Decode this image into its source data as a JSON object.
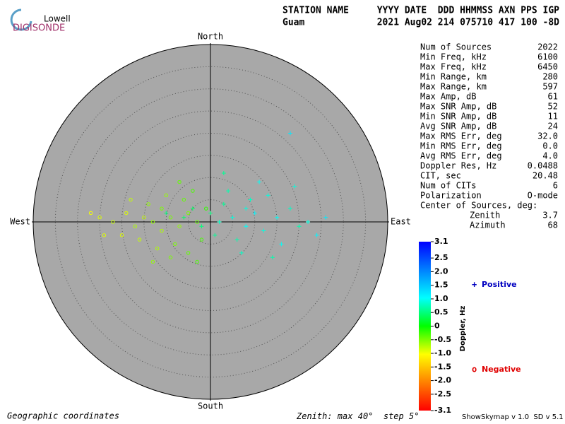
{
  "header": {
    "columns_left": "STATION NAME",
    "columns_right": "YYYY DATE  DDD HHMMSS AXN PPS IGP",
    "station": "Guam",
    "values": "2021 Aug02 214 075710 417 100 -8D"
  },
  "logo": {
    "top": "Lowell",
    "bottom": "DIGISONDE"
  },
  "stats": {
    "rows": [
      [
        "Num of Sources",
        "2022"
      ],
      [
        "Min Freq, kHz",
        "6100"
      ],
      [
        "Max Freq, kHz",
        "6450"
      ],
      [
        "Min Range, km",
        "280"
      ],
      [
        "Max Range, km",
        "597"
      ],
      [
        "Max Amp, dB",
        "61"
      ],
      [
        "Max SNR Amp, dB",
        "52"
      ],
      [
        "Min SNR Amp, dB",
        "11"
      ],
      [
        "Avg SNR Amp, dB",
        "24"
      ],
      [
        "Max RMS Err, deg",
        "32.0"
      ],
      [
        "Min RMS Err, deg",
        "0.0"
      ],
      [
        "Avg RMS Err, deg",
        "4.0"
      ],
      [
        "Doppler Res, Hz",
        "0.0488"
      ],
      [
        "CIT, sec",
        "20.48"
      ],
      [
        "Num of CITs",
        "6"
      ],
      [
        "Polarization",
        "O-mode"
      ]
    ],
    "center_label": "Center of Sources, deg:",
    "center_rows": [
      [
        "Zenith",
        "3.7"
      ],
      [
        "Azimuth",
        "68"
      ]
    ]
  },
  "footer": {
    "coordinates": "Geographic coordinates",
    "zenith_label": "Zenith: max",
    "step_label": "step",
    "version": "ShowSkymap v 1.0  SD v 5.1"
  },
  "chart_data": {
    "type": "skymap",
    "directions": {
      "north": "North",
      "south": "South",
      "east": "East",
      "west": "West"
    },
    "zenith_max": {
      "value": 40,
      "label": "40°"
    },
    "zenith_step": {
      "value": 5,
      "label": "5°"
    },
    "background": "#a8a8a8",
    "colorbar_label": "Doppler, Hz",
    "clim": [
      -3.1,
      3.1
    ],
    "cticks": [
      3.1,
      2.5,
      {
        "value": 2,
        "label": "2.0"
      },
      1.5,
      {
        "value": 1,
        "label": "1.0"
      },
      0.5,
      0,
      -0.5,
      {
        "value": -1,
        "label": "-1.0"
      },
      -1.5,
      {
        "value": -2,
        "label": "-2.0"
      },
      -2.5,
      -3.1
    ],
    "colormap": [
      "#ff0000",
      "#ff8000",
      "#ffff00",
      "#00ff00",
      "#00ffff",
      "#0080ff",
      "#0000ff"
    ],
    "series": [
      {
        "name": "Positive",
        "marker": "+",
        "color": "#0000c0",
        "x": [
          2,
          5,
          8,
          10,
          12,
          15,
          18,
          20,
          22,
          26,
          3,
          6,
          9,
          13,
          16,
          0,
          -2,
          -4,
          1,
          4,
          7,
          11,
          19,
          24,
          -6,
          14,
          3,
          -10,
          18,
          8
        ],
        "y": [
          0,
          1,
          -1,
          2,
          -2,
          1,
          3,
          -1,
          0,
          1,
          4,
          -4,
          5,
          6,
          -5,
          2,
          -1,
          3,
          -3,
          7,
          -7,
          9,
          8,
          -3,
          1,
          -8,
          11,
          2,
          20,
          3
        ],
        "doppler": [
          0.8,
          0.9,
          1.0,
          1.1,
          0.9,
          1.0,
          0.8,
          0.7,
          0.9,
          1.2,
          0.6,
          0.7,
          0.8,
          0.9,
          1.0,
          0.5,
          0.5,
          0.4,
          0.6,
          0.7,
          0.8,
          1.0,
          0.9,
          1.1,
          0.4,
          0.7,
          0.6,
          0.5,
          1.2,
          0.9
        ]
      },
      {
        "name": "Negative",
        "marker": "o",
        "color": "#e00000",
        "x": [
          -3,
          -5,
          -7,
          -9,
          -11,
          -13,
          -15,
          -17,
          -19,
          -22,
          -25,
          -6,
          -8,
          -10,
          -12,
          -4,
          -14,
          -16,
          -20,
          -2,
          -7,
          -9,
          -13,
          -18,
          -24,
          -1,
          -11,
          -5,
          -3,
          -27
        ],
        "y": [
          0,
          2,
          -1,
          1,
          -2,
          0,
          1,
          -1,
          2,
          0,
          1,
          5,
          -5,
          6,
          -6,
          7,
          4,
          -4,
          -3,
          -4,
          9,
          -8,
          -9,
          5,
          -3,
          3,
          3,
          -7,
          -9,
          2
        ],
        "doppler": [
          -0.4,
          -0.5,
          -0.6,
          -0.5,
          -0.7,
          -0.6,
          -0.8,
          -0.7,
          -0.9,
          -0.8,
          -0.9,
          -0.4,
          -0.5,
          -0.6,
          -0.7,
          -0.3,
          -0.6,
          -0.8,
          -0.9,
          -0.3,
          -0.4,
          -0.5,
          -0.6,
          -0.8,
          -0.9,
          -0.2,
          -0.5,
          -0.4,
          -0.3,
          -1.0
        ]
      }
    ]
  }
}
